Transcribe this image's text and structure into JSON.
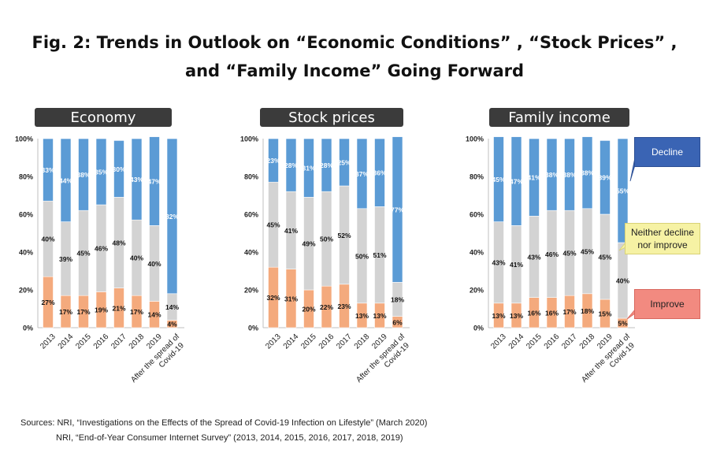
{
  "title": {
    "line1": "Fig. 2: Trends in Outlook on “Economic Conditions” , “Stock Prices” ,",
    "line2": "and “Family Income” Going Forward"
  },
  "legend": {
    "decline": "Decline",
    "neither": "Neither decline nor improve",
    "improve": "Improve"
  },
  "colors": {
    "improve": "#f4aa7d",
    "neither": "#d3d3d3",
    "decline": "#5b9bd5",
    "title_box": "#3b3b3b"
  },
  "sources": {
    "line1": "Sources: NRI, “Investigations on the Effects of the Spread of Covid-19 Infection on Lifestyle” (March 2020)",
    "line2": "NRI, “End-of-Year Consumer Internet Survey” (2013, 2014, 2015, 2016, 2017, 2018, 2019)"
  },
  "chart_data": [
    {
      "type": "bar",
      "stacked": true,
      "title": "Economy",
      "categories": [
        "2013",
        "2014",
        "2015",
        "2016",
        "2017",
        "2018",
        "2019",
        "After the spread of Covid-19"
      ],
      "y_ticks": [
        "0%",
        "20%",
        "40%",
        "60%",
        "80%",
        "100%"
      ],
      "ylim": [
        0,
        100
      ],
      "series": [
        {
          "name": "Improve",
          "values": [
            27,
            17,
            17,
            19,
            21,
            17,
            14,
            4
          ],
          "labels": [
            "27%",
            "17%",
            "17%",
            "19%",
            "21%",
            "17%",
            "14%",
            "4%"
          ]
        },
        {
          "name": "Neither decline nor improve",
          "values": [
            40,
            39,
            45,
            46,
            48,
            40,
            40,
            14
          ],
          "labels": [
            "40%",
            "39%",
            "45%",
            "46%",
            "48%",
            "40%",
            "40%",
            "14%"
          ]
        },
        {
          "name": "Decline",
          "values": [
            33,
            44,
            38,
            35,
            30,
            43,
            47,
            82
          ],
          "labels": [
            "33%",
            "44%",
            "38%",
            "35%",
            "30%",
            "43%",
            "47%",
            "82%"
          ]
        }
      ]
    },
    {
      "type": "bar",
      "stacked": true,
      "title": "Stock prices",
      "categories": [
        "2013",
        "2014",
        "2015",
        "2016",
        "2017",
        "2018",
        "2019",
        "After the spread of Covid-19"
      ],
      "y_ticks": [
        "0%",
        "20%",
        "40%",
        "60%",
        "80%",
        "100%"
      ],
      "ylim": [
        0,
        100
      ],
      "series": [
        {
          "name": "Improve",
          "values": [
            32,
            31,
            20,
            22,
            23,
            13,
            13,
            6
          ],
          "labels": [
            "32%",
            "31%",
            "20%",
            "22%",
            "23%",
            "13%",
            "13%",
            "6%"
          ]
        },
        {
          "name": "Neither decline nor improve",
          "values": [
            45,
            41,
            49,
            50,
            52,
            50,
            51,
            18
          ],
          "labels": [
            "45%",
            "41%",
            "49%",
            "50%",
            "52%",
            "50%",
            "51%",
            "18%"
          ]
        },
        {
          "name": "Decline",
          "values": [
            23,
            28,
            31,
            28,
            25,
            37,
            36,
            77
          ],
          "labels": [
            "23%",
            "28%",
            "31%",
            "28%",
            "25%",
            "37%",
            "36%",
            "77%"
          ]
        }
      ]
    },
    {
      "type": "bar",
      "stacked": true,
      "title": "Family income",
      "categories": [
        "2013",
        "2014",
        "2015",
        "2016",
        "2017",
        "2018",
        "2019",
        "After the spread of Covid-19"
      ],
      "y_ticks": [
        "0%",
        "20%",
        "40%",
        "60%",
        "80%",
        "100%"
      ],
      "ylim": [
        0,
        100
      ],
      "series": [
        {
          "name": "Improve",
          "values": [
            13,
            13,
            16,
            16,
            17,
            18,
            15,
            5
          ],
          "labels": [
            "13%",
            "13%",
            "16%",
            "16%",
            "17%",
            "18%",
            "15%",
            "5%"
          ]
        },
        {
          "name": "Neither decline nor improve",
          "values": [
            43,
            41,
            43,
            46,
            45,
            45,
            45,
            40
          ],
          "labels": [
            "43%",
            "41%",
            "43%",
            "46%",
            "45%",
            "45%",
            "45%",
            "40%"
          ]
        },
        {
          "name": "Decline",
          "values": [
            45,
            47,
            41,
            38,
            38,
            38,
            39,
            55
          ],
          "labels": [
            "45%",
            "47%",
            "41%",
            "38%",
            "38%",
            "38%",
            "39%",
            "55%"
          ]
        }
      ]
    }
  ]
}
